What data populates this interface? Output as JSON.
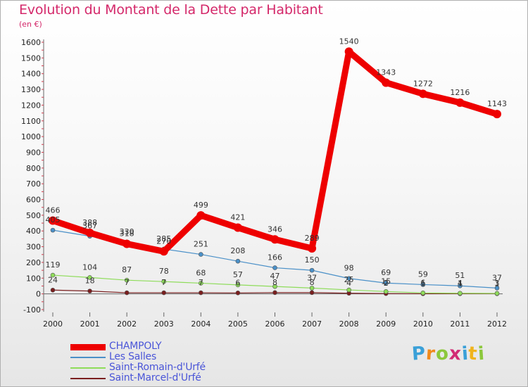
{
  "header": {
    "title": "Evolution du Montant de la Dette par Habitant",
    "subtitle": "(en €)"
  },
  "logo": {
    "text": "Proxiti",
    "letter_colors": [
      "#3aa0d8",
      "#f08a1c",
      "#8cc83c",
      "#d22a74",
      "#3aa0d8",
      "#f0b41c",
      "#8cc83c"
    ]
  },
  "chart_data": {
    "type": "line",
    "title": "Evolution du Montant de la Dette par Habitant",
    "subtitle": "(en €)",
    "xlabel": "",
    "ylabel": "",
    "x": [
      "2000",
      "2001",
      "2002",
      "2003",
      "2004",
      "2005",
      "2006",
      "2007",
      "2008",
      "2009",
      "2010",
      "2011",
      "2012"
    ],
    "ylim": [
      -100,
      1600
    ],
    "ytick_step": 100,
    "grid": false,
    "legend_position": "bottom-left",
    "series": [
      {
        "name": "CHAMPOLY",
        "color": "#ee0000",
        "values": [
          466,
          388,
          318,
          270,
          499,
          421,
          346,
          289,
          1540,
          1343,
          1272,
          1216,
          1143
        ],
        "labels": [
          "466",
          "388",
          "318",
          "270",
          "499",
          "421",
          "346",
          "289",
          "1540",
          "1343",
          "1272",
          "1216",
          "1143"
        ]
      },
      {
        "name": "Les Salles",
        "color": "#4a90c8",
        "values": [
          405,
          367,
          330,
          285,
          251,
          208,
          166,
          150,
          98,
          69,
          59,
          51,
          37
        ],
        "labels": [
          "405",
          "367",
          "330",
          "285",
          "251",
          "208",
          "166",
          "150",
          "98",
          "69",
          "59",
          "51",
          "37"
        ]
      },
      {
        "name": "Saint-Romain-d'Urfé",
        "color": "#8edc5a",
        "values": [
          119,
          104,
          87,
          78,
          68,
          57,
          47,
          37,
          25,
          15,
          6,
          4,
          3
        ],
        "labels": [
          "119",
          "104",
          "87",
          "78",
          "68",
          "57",
          "47",
          "37",
          "25",
          "15",
          "6",
          "4",
          "3"
        ]
      },
      {
        "name": "Saint-Marcel-d'Urfé",
        "color": "#7a1e1e",
        "values": [
          24,
          18,
          7,
          7,
          7,
          6,
          8,
          8,
          4,
          2,
          1,
          1,
          1
        ],
        "labels": [
          "24",
          "18",
          "7",
          "7",
          "7",
          "6",
          "8",
          "8",
          "4",
          "2",
          "1",
          "1",
          "1"
        ]
      }
    ]
  }
}
